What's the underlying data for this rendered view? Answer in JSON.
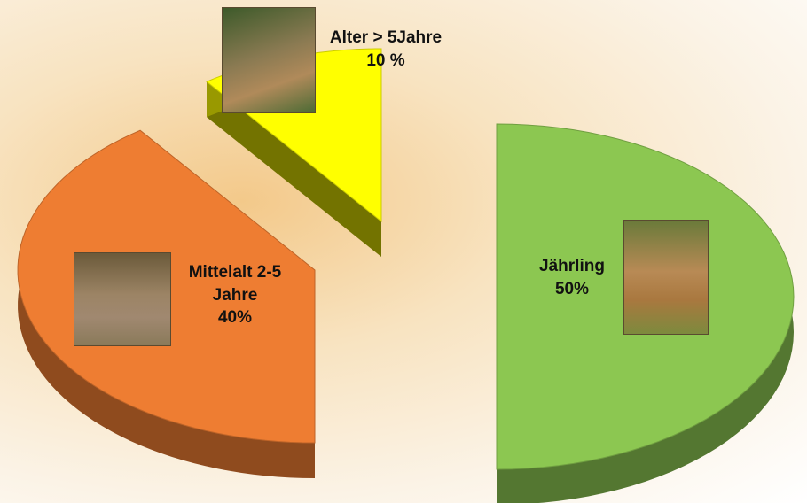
{
  "chart_data": {
    "type": "pie",
    "categories": [
      "Jährling",
      "Mittelalt 2-5 Jahre",
      "Alter > 5Jahre"
    ],
    "values": [
      50,
      40,
      10
    ],
    "value_labels": [
      "50%",
      "40%",
      "10 %"
    ],
    "colors": [
      "#8cc751",
      "#ee7d32",
      "#ffff00"
    ]
  }
}
